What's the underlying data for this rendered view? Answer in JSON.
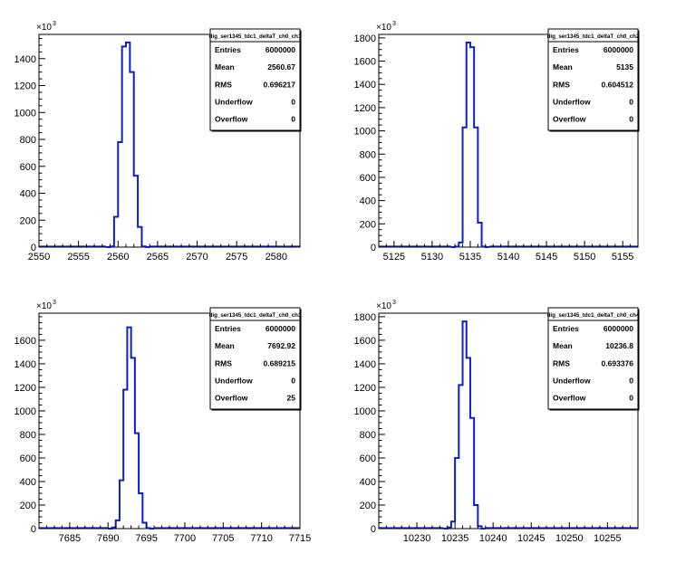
{
  "chart_data": [
    {
      "type": "bar",
      "title": "dig_ser1345_tdc1_deltaT_ch0_ch1",
      "xlim": [
        2550,
        2583
      ],
      "xticks": [
        2550,
        2555,
        2560,
        2565,
        2570,
        2575,
        2580
      ],
      "ylim": [
        0,
        1580
      ],
      "yticks": [
        0,
        200,
        400,
        600,
        800,
        1000,
        1200,
        1400
      ],
      "ytick_labels": [
        "0",
        "200",
        "400",
        "600",
        "800",
        "1000",
        "1200",
        "1400"
      ],
      "y_multiplier_label": "×10",
      "y_multiplier_exp": "3",
      "bins": [
        {
          "x0": 2558.5,
          "x1": 2559.0,
          "y": 0
        },
        {
          "x0": 2559.0,
          "x1": 2559.5,
          "y": 5
        },
        {
          "x0": 2559.5,
          "x1": 2560.0,
          "y": 225
        },
        {
          "x0": 2560.0,
          "x1": 2560.5,
          "y": 780
        },
        {
          "x0": 2560.5,
          "x1": 2561.0,
          "y": 1490
        },
        {
          "x0": 2561.0,
          "x1": 2561.5,
          "y": 1520
        },
        {
          "x0": 2561.5,
          "x1": 2562.0,
          "y": 1300
        },
        {
          "x0": 2562.0,
          "x1": 2562.5,
          "y": 530
        },
        {
          "x0": 2562.5,
          "x1": 2563.0,
          "y": 150
        },
        {
          "x0": 2563.0,
          "x1": 2563.5,
          "y": 5
        },
        {
          "x0": 2563.5,
          "x1": 2564.0,
          "y": 0
        }
      ],
      "stats": [
        {
          "label": "Entries",
          "value": "6000000"
        },
        {
          "label": "Mean",
          "value": "2560.67"
        },
        {
          "label": "RMS",
          "value": "0.696217"
        },
        {
          "label": "Underflow",
          "value": "0"
        },
        {
          "label": "Overflow",
          "value": "0"
        }
      ]
    },
    {
      "type": "bar",
      "title": "dig_ser1345_tdc1_deltaT_ch0_ch2",
      "xlim": [
        5123,
        5157
      ],
      "xticks": [
        5125,
        5130,
        5135,
        5140,
        5145,
        5150,
        5155
      ],
      "ylim": [
        0,
        1830
      ],
      "yticks": [
        0,
        200,
        400,
        600,
        800,
        1000,
        1200,
        1400,
        1600,
        1800
      ],
      "ytick_labels": [
        "0",
        "200",
        "400",
        "600",
        "800",
        "1000",
        "1200",
        "1400",
        "1600",
        "1800"
      ],
      "y_multiplier_label": "×10",
      "y_multiplier_exp": "3",
      "bins": [
        {
          "x0": 5132.5,
          "x1": 5133.0,
          "y": 0
        },
        {
          "x0": 5133.0,
          "x1": 5133.5,
          "y": 5
        },
        {
          "x0": 5133.5,
          "x1": 5134.0,
          "y": 40
        },
        {
          "x0": 5134.0,
          "x1": 5134.5,
          "y": 1030
        },
        {
          "x0": 5134.5,
          "x1": 5135.0,
          "y": 1760
        },
        {
          "x0": 5135.0,
          "x1": 5135.5,
          "y": 1720
        },
        {
          "x0": 5135.5,
          "x1": 5136.0,
          "y": 1030
        },
        {
          "x0": 5136.0,
          "x1": 5136.5,
          "y": 210
        },
        {
          "x0": 5136.5,
          "x1": 5137.0,
          "y": 5
        },
        {
          "x0": 5137.0,
          "x1": 5137.5,
          "y": 0
        }
      ],
      "stats": [
        {
          "label": "Entries",
          "value": "6000000"
        },
        {
          "label": "Mean",
          "value": "5135"
        },
        {
          "label": "RMS",
          "value": "0.604512"
        },
        {
          "label": "Underflow",
          "value": "0"
        },
        {
          "label": "Overflow",
          "value": "0"
        }
      ]
    },
    {
      "type": "bar",
      "title": "dig_ser1345_tdc1_deltaT_ch0_ch3",
      "xlim": [
        7681,
        7715
      ],
      "xticks": [
        7685,
        7690,
        7695,
        7700,
        7705,
        7710,
        7715
      ],
      "ylim": [
        0,
        1830
      ],
      "yticks": [
        0,
        200,
        400,
        600,
        800,
        1000,
        1200,
        1400,
        1600
      ],
      "ytick_labels": [
        "0",
        "200",
        "400",
        "600",
        "800",
        "1000",
        "1200",
        "1400",
        "1600"
      ],
      "y_multiplier_label": "×10",
      "y_multiplier_exp": "3",
      "bins": [
        {
          "x0": 7690.0,
          "x1": 7690.5,
          "y": 0
        },
        {
          "x0": 7690.5,
          "x1": 7691.0,
          "y": 10
        },
        {
          "x0": 7691.0,
          "x1": 7691.5,
          "y": 70
        },
        {
          "x0": 7691.5,
          "x1": 7692.0,
          "y": 410
        },
        {
          "x0": 7692.0,
          "x1": 7692.5,
          "y": 1180
        },
        {
          "x0": 7692.5,
          "x1": 7693.0,
          "y": 1710
        },
        {
          "x0": 7693.0,
          "x1": 7693.5,
          "y": 1450
        },
        {
          "x0": 7693.5,
          "x1": 7694.0,
          "y": 810
        },
        {
          "x0": 7694.0,
          "x1": 7694.5,
          "y": 300
        },
        {
          "x0": 7694.5,
          "x1": 7695.0,
          "y": 50
        },
        {
          "x0": 7695.0,
          "x1": 7695.5,
          "y": 5
        },
        {
          "x0": 7695.5,
          "x1": 7696.0,
          "y": 0
        }
      ],
      "stats": [
        {
          "label": "Entries",
          "value": "6000000"
        },
        {
          "label": "Mean",
          "value": "7692.92"
        },
        {
          "label": "RMS",
          "value": "0.689215"
        },
        {
          "label": "Underflow",
          "value": "0"
        },
        {
          "label": "Overflow",
          "value": "25"
        }
      ]
    },
    {
      "type": "bar",
      "title": "dig_ser1345_tdc1_deltaT_ch0_ch4",
      "xlim": [
        10225,
        10259
      ],
      "xticks": [
        10230,
        10235,
        10240,
        10245,
        10250,
        10255
      ],
      "ylim": [
        0,
        1830
      ],
      "yticks": [
        0,
        200,
        400,
        600,
        800,
        1000,
        1200,
        1400,
        1600,
        1800
      ],
      "ytick_labels": [
        "0",
        "200",
        "400",
        "600",
        "800",
        "1000",
        "1200",
        "1400",
        "1600",
        "1800"
      ],
      "y_multiplier_label": "×10",
      "y_multiplier_exp": "3",
      "bins": [
        {
          "x0": 10233.5,
          "x1": 10234.0,
          "y": 0
        },
        {
          "x0": 10234.0,
          "x1": 10234.5,
          "y": 10
        },
        {
          "x0": 10234.5,
          "x1": 10235.0,
          "y": 60
        },
        {
          "x0": 10235.0,
          "x1": 10235.5,
          "y": 600
        },
        {
          "x0": 10235.5,
          "x1": 10236.0,
          "y": 1220
        },
        {
          "x0": 10236.0,
          "x1": 10236.5,
          "y": 1760
        },
        {
          "x0": 10236.5,
          "x1": 10237.0,
          "y": 1450
        },
        {
          "x0": 10237.0,
          "x1": 10237.5,
          "y": 940
        },
        {
          "x0": 10237.5,
          "x1": 10238.0,
          "y": 200
        },
        {
          "x0": 10238.0,
          "x1": 10238.5,
          "y": 20
        },
        {
          "x0": 10238.5,
          "x1": 10239.0,
          "y": 0
        }
      ],
      "stats": [
        {
          "label": "Entries",
          "value": "6000000"
        },
        {
          "label": "Mean",
          "value": "10236.8"
        },
        {
          "label": "RMS",
          "value": "0.693376"
        },
        {
          "label": "Underflow",
          "value": "0"
        },
        {
          "label": "Overflow",
          "value": "0"
        }
      ]
    }
  ],
  "colors": {
    "histogram_line": "#0b20c8",
    "frame": "#000000",
    "background": "#ffffff"
  }
}
